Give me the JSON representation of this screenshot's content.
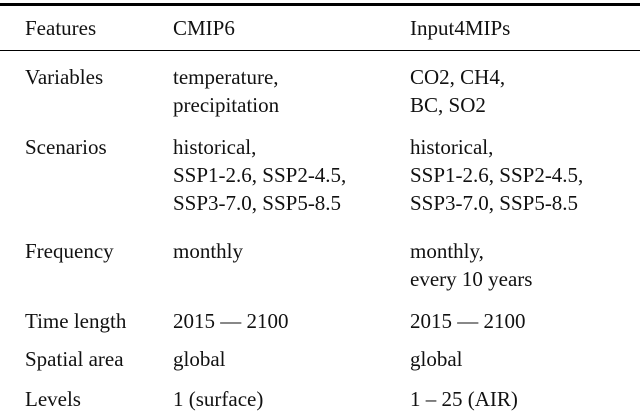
{
  "table": {
    "columns": [
      "Features",
      "CMIP6",
      "Input4MIPs"
    ],
    "rows": [
      {
        "feature": "Variables",
        "cmip6": "temperature,\nprecipitation",
        "input4mips": "CO2, CH4,\nBC, SO2"
      },
      {
        "feature": "Scenarios",
        "cmip6": "historical,\nSSP1-2.6, SSP2-4.5,\nSSP3-7.0, SSP5-8.5",
        "input4mips": "historical,\nSSP1-2.6, SSP2-4.5,\nSSP3-7.0, SSP5-8.5"
      },
      {
        "feature": "Frequency",
        "cmip6": "monthly",
        "input4mips": "monthly,\nevery 10 years"
      },
      {
        "feature": "Time length",
        "cmip6": "2015 — 2100",
        "input4mips": "2015 — 2100"
      },
      {
        "feature": "Spatial area",
        "cmip6": "global",
        "input4mips": "global"
      },
      {
        "feature": "Levels",
        "cmip6": "1 (surface)",
        "input4mips": "1 – 25 (AIR)"
      }
    ]
  },
  "colors": {
    "text": "#111111",
    "rule": "#000000",
    "background": "#ffffff"
  }
}
